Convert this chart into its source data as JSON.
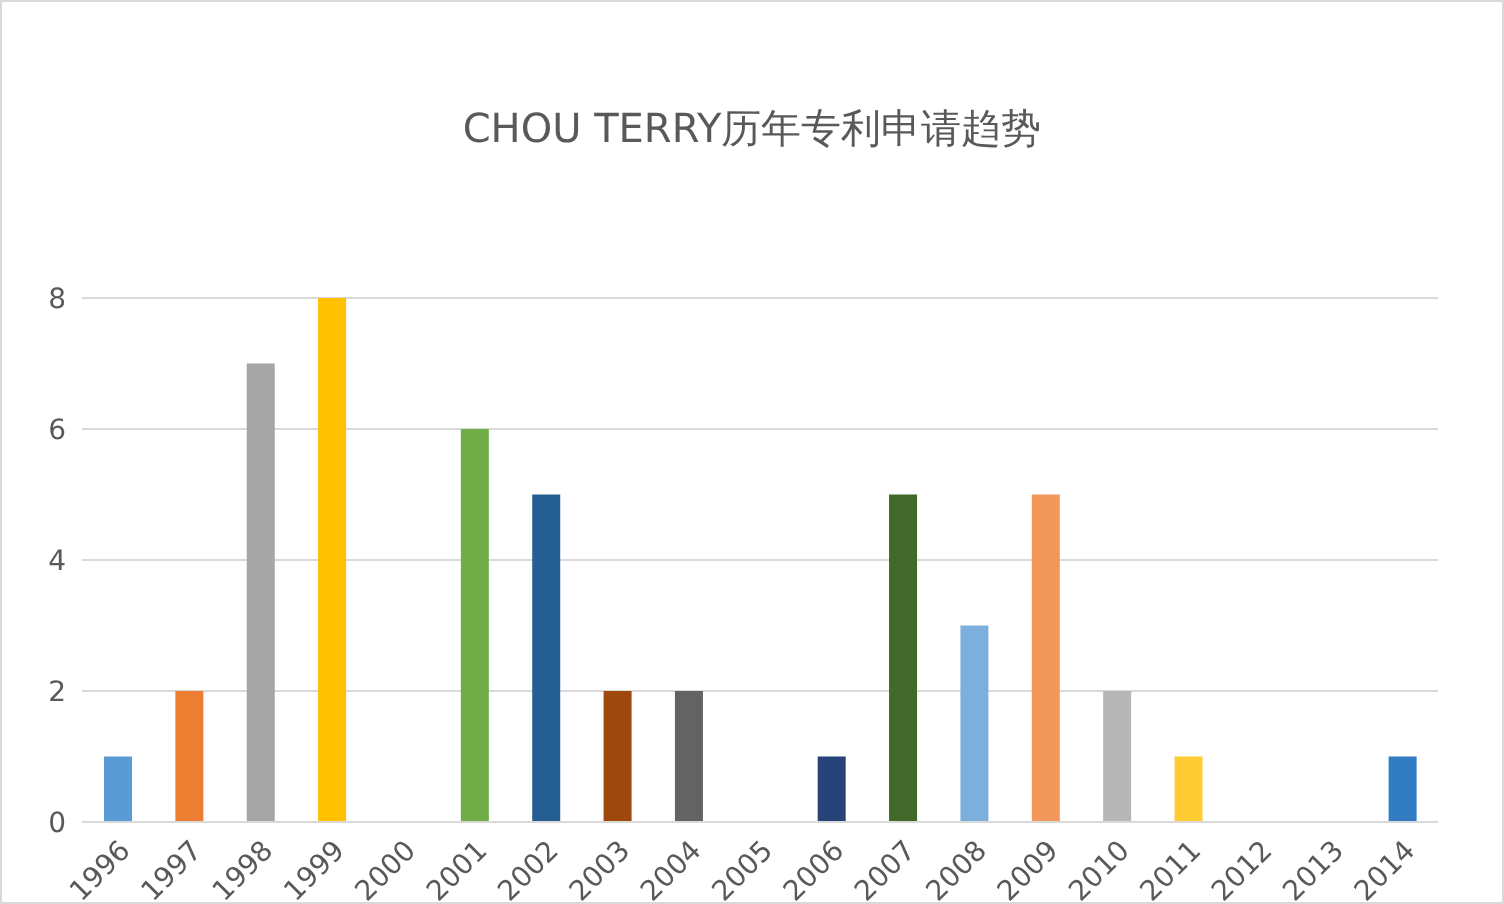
{
  "chart_data": {
    "type": "bar",
    "title": "CHOU TERRY历年专利申请趋势",
    "categories": [
      "1996",
      "1997",
      "1998",
      "1999",
      "2000",
      "2001",
      "2002",
      "2003",
      "2004",
      "2005",
      "2006",
      "2007",
      "2008",
      "2009",
      "2010",
      "2011",
      "2012",
      "2013",
      "2014"
    ],
    "values": [
      1,
      2,
      7,
      8,
      0,
      6,
      5,
      2,
      2,
      0,
      1,
      5,
      3,
      5,
      2,
      1,
      0,
      0,
      1
    ],
    "colors": [
      "#5b9bd5",
      "#ed7d31",
      "#a5a5a5",
      "#ffc000",
      "#4472c4",
      "#70ad47",
      "#255e91",
      "#9e480e",
      "#636363",
      "#997300",
      "#264478",
      "#43682b",
      "#7cafdd",
      "#f1975a",
      "#b7b7b7",
      "#ffcd33",
      "#698ed0",
      "#8cc168",
      "#327dc2"
    ],
    "ylim": [
      0,
      8
    ],
    "yticks": [
      0,
      2,
      4,
      6,
      8
    ],
    "grid": "y",
    "legend": false
  }
}
